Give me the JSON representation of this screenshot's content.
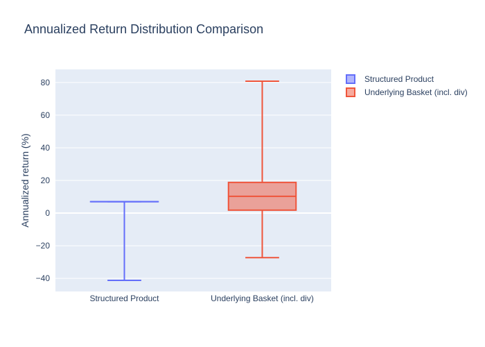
{
  "chart_data": {
    "type": "box",
    "title": "Annualized Return Distribution Comparison",
    "xlabel": "",
    "ylabel": "Annualized return (%)",
    "ylim": [
      -48,
      88
    ],
    "yticks": [
      -40,
      -20,
      0,
      20,
      40,
      60,
      80
    ],
    "ytick_labels": [
      "−40",
      "−20",
      "0",
      "20",
      "40",
      "60",
      "80"
    ],
    "categories": [
      "Structured Product",
      "Underlying Basket (incl. div)"
    ],
    "grid": true,
    "legend_position": "top-right",
    "series": [
      {
        "name": "Structured Product",
        "category": "Structured Product",
        "color": "#636efa",
        "fill": "rgba(99,110,250,0.5)",
        "min": -41.2,
        "q1": 7.0,
        "median": 7.0,
        "q3": 7.0,
        "max": 7.0
      },
      {
        "name": "Underlying Basket (incl. div)",
        "category": "Underlying Basket (incl. div)",
        "color": "#ef553b",
        "fill": "rgba(239,85,59,0.5)",
        "min": -27.3,
        "q1": 1.8,
        "median": 10.3,
        "q3": 18.8,
        "max": 80.8
      }
    ]
  }
}
